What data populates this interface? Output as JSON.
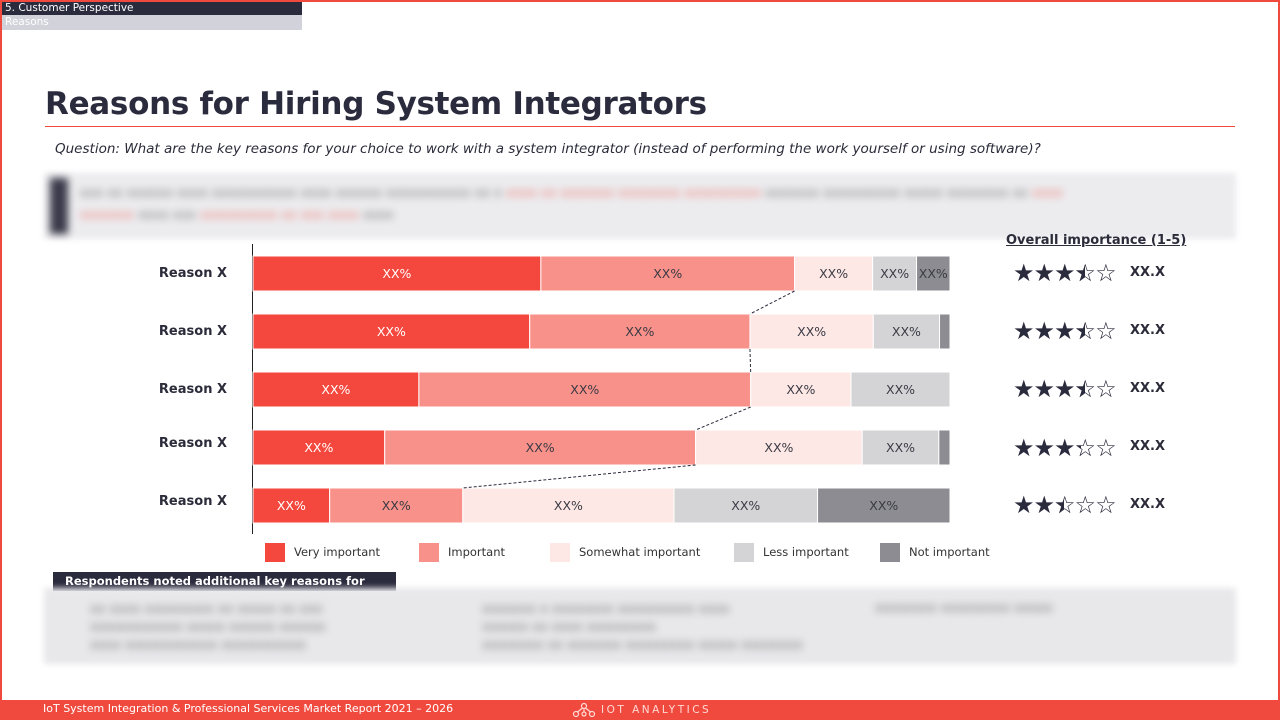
{
  "breadcrumb": {
    "section": "5. Customer Perspective",
    "subsection": "Reasons"
  },
  "page_title": "Reasons for Hiring System Integrators",
  "question": "Question: What are the key reasons for your choice to work with a system integrator (instead of performing the work yourself or using software)?",
  "importance": {
    "title": "Overall importance (1-5)",
    "rows": [
      {
        "stars": 3.5,
        "score": "XX.X"
      },
      {
        "stars": 3.5,
        "score": "XX.X"
      },
      {
        "stars": 3.5,
        "score": "XX.X"
      },
      {
        "stars": 3.3,
        "score": "XX.X"
      },
      {
        "stars": 2.5,
        "score": "XX.X"
      }
    ]
  },
  "note_header": "Respondents noted additional key reasons for hiring SIs …",
  "footer": {
    "report": "IoT System Integration & Professional Services Market Report 2021 – 2026",
    "brand": "IOT ANALYTICS"
  },
  "colors": {
    "Very important": "#f4473d",
    "Important": "#f8918a",
    "Somewhat important": "#fde8e6",
    "Less important": "#d4d4d7",
    "Not important": "#8c8c92"
  },
  "chart_data": {
    "type": "bar",
    "orientation": "horizontal",
    "stacked": true,
    "normalized": true,
    "categories": [
      "Reason X",
      "Reason X",
      "Reason X",
      "Reason X",
      "Reason X"
    ],
    "series": [
      {
        "name": "Very important",
        "values": [
          41.3,
          39.7,
          23.8,
          18.9,
          11.0
        ],
        "labels": [
          "XX%",
          "XX%",
          "XX%",
          "XX%",
          "XX%"
        ]
      },
      {
        "name": "Important",
        "values": [
          36.4,
          31.6,
          47.6,
          44.6,
          19.1
        ],
        "labels": [
          "XX%",
          "XX%",
          "XX%",
          "XX%",
          "XX%"
        ]
      },
      {
        "name": "Somewhat important",
        "values": [
          11.2,
          17.7,
          14.4,
          23.9,
          30.3
        ],
        "labels": [
          "XX%",
          "XX%",
          "XX%",
          "XX%",
          "XX%"
        ]
      },
      {
        "name": "Less important",
        "values": [
          6.3,
          9.5,
          14.2,
          11.0,
          20.6
        ],
        "labels": [
          "XX%",
          "XX%",
          "XX%",
          "XX%",
          "XX%"
        ]
      },
      {
        "name": "Not important",
        "values": [
          4.8,
          1.5,
          0,
          1.6,
          19.0
        ],
        "labels": [
          "XX%",
          "",
          "",
          "",
          "XX%"
        ]
      }
    ],
    "xlim": [
      0,
      100
    ],
    "legend": "bottom"
  }
}
